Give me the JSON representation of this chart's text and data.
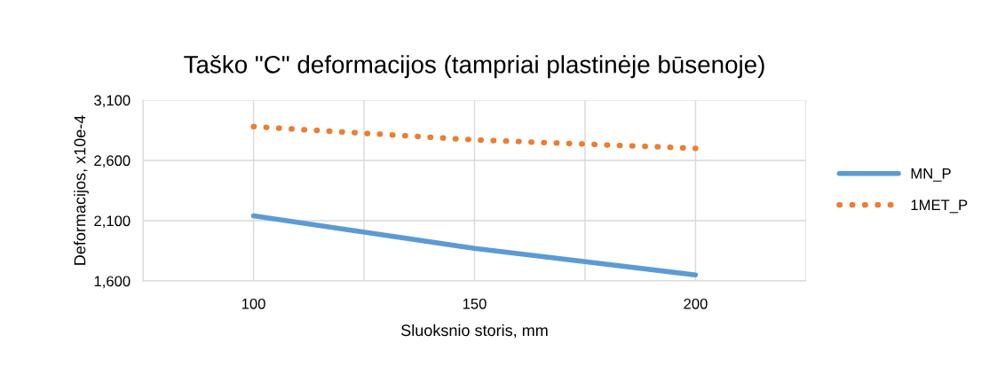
{
  "chart_data": {
    "type": "line",
    "title": "Taško \"C\" deformacijos (tampriai plastinėje būsenoje)",
    "xlabel": "Sluoksnio storis, mm",
    "ylabel": "Deformacijos, x10e-4",
    "x": [
      100,
      150,
      200
    ],
    "series": [
      {
        "name": "MN_P",
        "color": "#5b9bd5",
        "values": [
          2140,
          1870,
          1650
        ],
        "line_style": "solid"
      },
      {
        "name": "1MET_P",
        "color": "#ed7d31",
        "values": [
          2880,
          2770,
          2700
        ],
        "line_style": "dotted"
      }
    ],
    "xlim": [
      75,
      225
    ],
    "xticks": [
      {
        "value": 75,
        "label": null
      },
      100,
      {
        "value": 125,
        "label": null
      },
      150,
      {
        "value": 175,
        "label": null
      },
      200,
      {
        "value": 225,
        "label": null
      }
    ],
    "ylim": [
      1600,
      3100
    ],
    "yticks": [
      {
        "value": 1600,
        "label": "1,600"
      },
      {
        "value": 2100,
        "label": "2,100"
      },
      {
        "value": 2600,
        "label": "2,600"
      },
      {
        "value": 3100,
        "label": "3,100"
      }
    ],
    "grid": true,
    "legend": "right",
    "marker": "none"
  }
}
